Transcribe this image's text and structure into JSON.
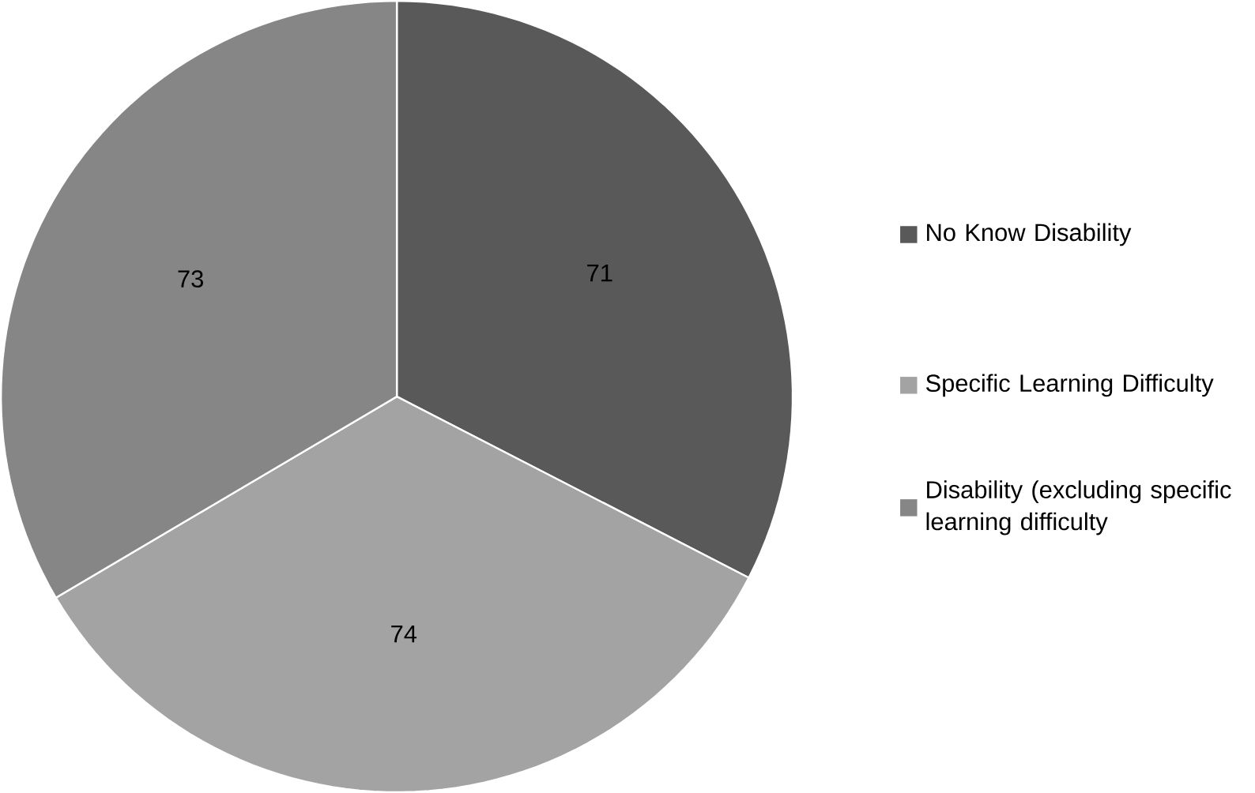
{
  "chart_data": {
    "type": "pie",
    "categories": [
      "No Know Disability",
      "Specific Learning Difficulty",
      "Disability (excluding specific learning difficulty"
    ],
    "values": [
      71,
      74,
      73
    ],
    "colors": [
      "#595959",
      "#a3a3a3",
      "#868686"
    ],
    "data_labels": true,
    "legend": "right"
  }
}
